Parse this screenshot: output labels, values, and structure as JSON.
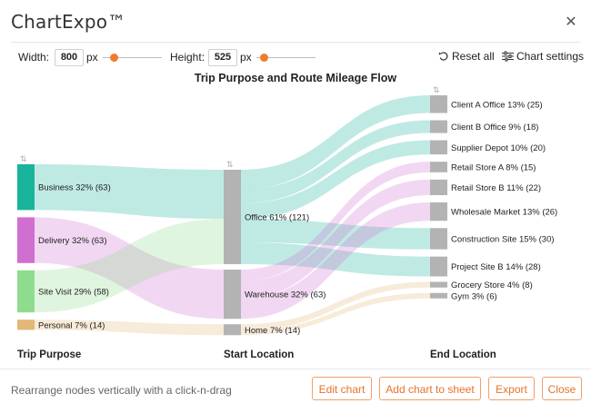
{
  "app": {
    "title": "ChartExpo™"
  },
  "toolbar": {
    "width_label": "Width:",
    "width_value": "800",
    "height_label": "Height:",
    "height_value": "525",
    "unit": "px",
    "reset_label": "Reset all",
    "settings_label": "Chart settings"
  },
  "chart_data": {
    "type": "sankey",
    "title": "Trip Purpose and Route Mileage Flow",
    "columns": [
      "Trip Purpose",
      "Start Location",
      "End Location"
    ],
    "nodes": [
      {
        "id": "business",
        "label": "Business 32% (63)",
        "column": 0,
        "value": 63,
        "color": "#1ab39b"
      },
      {
        "id": "delivery",
        "label": "Delivery 32% (63)",
        "column": 0,
        "value": 63,
        "color": "#d16fd1"
      },
      {
        "id": "sitevisit",
        "label": "Site Visit 29% (58)",
        "column": 0,
        "value": 58,
        "color": "#8fdc8f"
      },
      {
        "id": "personal",
        "label": "Personal 7% (14)",
        "column": 0,
        "value": 14,
        "color": "#e3b775"
      },
      {
        "id": "office",
        "label": "Office 61% (121)",
        "column": 1,
        "value": 121,
        "color": "#b3b3b3"
      },
      {
        "id": "warehouse",
        "label": "Warehouse 32% (63)",
        "column": 1,
        "value": 63,
        "color": "#b3b3b3"
      },
      {
        "id": "home",
        "label": "Home 7% (14)",
        "column": 1,
        "value": 14,
        "color": "#b3b3b3"
      },
      {
        "id": "clienta",
        "label": "Client A Office 13% (25)",
        "column": 2,
        "value": 25,
        "color": "#b3b3b3"
      },
      {
        "id": "clientb",
        "label": "Client B Office 9% (18)",
        "column": 2,
        "value": 18,
        "color": "#b3b3b3"
      },
      {
        "id": "supplier",
        "label": "Supplier Depot 10% (20)",
        "column": 2,
        "value": 20,
        "color": "#b3b3b3"
      },
      {
        "id": "retaila",
        "label": "Retail Store A 8% (15)",
        "column": 2,
        "value": 15,
        "color": "#b3b3b3"
      },
      {
        "id": "retailb",
        "label": "Retail Store B 11% (22)",
        "column": 2,
        "value": 22,
        "color": "#b3b3b3"
      },
      {
        "id": "wholesale",
        "label": "Wholesale Market 13% (26)",
        "column": 2,
        "value": 26,
        "color": "#b3b3b3"
      },
      {
        "id": "construction",
        "label": "Construction Site 15% (30)",
        "column": 2,
        "value": 30,
        "color": "#b3b3b3"
      },
      {
        "id": "projectb",
        "label": "Project Site B 14% (28)",
        "column": 2,
        "value": 28,
        "color": "#b3b3b3"
      },
      {
        "id": "grocery",
        "label": "Grocery Store 4% (8)",
        "column": 2,
        "value": 8,
        "color": "#b3b3b3"
      },
      {
        "id": "gym",
        "label": "Gym 3% (6)",
        "column": 2,
        "value": 6,
        "color": "#b3b3b3"
      }
    ],
    "links": [
      {
        "source": "business",
        "target": "office",
        "value": 63
      },
      {
        "source": "delivery",
        "target": "warehouse",
        "value": 63
      },
      {
        "source": "sitevisit",
        "target": "office",
        "value": 58
      },
      {
        "source": "personal",
        "target": "home",
        "value": 14
      },
      {
        "source": "office",
        "target": "clienta",
        "value": 25
      },
      {
        "source": "office",
        "target": "clientb",
        "value": 18
      },
      {
        "source": "office",
        "target": "supplier",
        "value": 20
      },
      {
        "source": "office",
        "target": "construction",
        "value": 30
      },
      {
        "source": "office",
        "target": "projectb",
        "value": 28
      },
      {
        "source": "warehouse",
        "target": "retaila",
        "value": 15
      },
      {
        "source": "warehouse",
        "target": "retailb",
        "value": 22
      },
      {
        "source": "warehouse",
        "target": "wholesale",
        "value": 26
      },
      {
        "source": "home",
        "target": "grocery",
        "value": 8
      },
      {
        "source": "home",
        "target": "gym",
        "value": 6
      }
    ]
  },
  "footer": {
    "hint": "Rearrange nodes vertically with a click-n-drag",
    "edit_chart": "Edit chart",
    "add_to_sheet": "Add chart to sheet",
    "export": "Export",
    "close": "Close"
  }
}
